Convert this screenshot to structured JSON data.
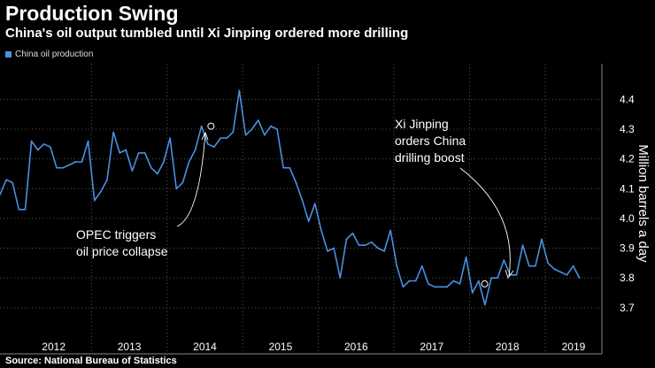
{
  "header": {
    "title": "Production Swing",
    "subtitle": "China's oil output tumbled until Xi Jinping ordered more drilling"
  },
  "source_text": "Source: National Bureau of Statistics",
  "colors": {
    "background": "#000000",
    "series": "#4a90e2",
    "grid": "#555555",
    "text": "#ffffff",
    "annotation": "#ffffff"
  },
  "chart_data": {
    "type": "line",
    "title": "Production Swing",
    "subtitle": "China's oil output tumbled until Xi Jinping ordered more drilling",
    "xlabel": "",
    "ylabel": "Million barrels a day",
    "ylim": [
      3.64,
      4.52
    ],
    "yticks": [
      "3.7",
      "3.8",
      "3.9",
      "4.0",
      "4.1",
      "4.2",
      "4.3",
      "4.4"
    ],
    "xlim": [
      2011.79,
      2019.75
    ],
    "year_labels": [
      "2012",
      "2013",
      "2014",
      "2015",
      "2016",
      "2017",
      "2018",
      "2019"
    ],
    "legend": [
      "China oil production"
    ],
    "series": [
      {
        "name": "China oil production",
        "start": 2011.79,
        "step": 0.0833,
        "values": [
          4.08,
          4.13,
          4.12,
          4.03,
          4.03,
          4.26,
          4.23,
          4.25,
          4.24,
          4.17,
          4.17,
          4.18,
          4.19,
          4.19,
          4.26,
          4.06,
          4.09,
          4.13,
          4.29,
          4.22,
          4.23,
          4.16,
          4.22,
          4.22,
          4.17,
          4.15,
          4.19,
          4.27,
          4.1,
          4.12,
          4.19,
          4.23,
          4.31,
          4.25,
          4.24,
          4.27,
          4.27,
          4.29,
          4.43,
          4.28,
          4.3,
          4.33,
          4.28,
          4.31,
          4.3,
          4.17,
          4.17,
          4.12,
          4.06,
          3.99,
          4.05,
          3.96,
          3.89,
          3.9,
          3.8,
          3.93,
          3.95,
          3.91,
          3.91,
          3.92,
          3.9,
          3.89,
          3.96,
          3.84,
          3.77,
          3.79,
          3.79,
          3.84,
          3.78,
          3.77,
          3.77,
          3.77,
          3.79,
          3.78,
          3.87,
          3.75,
          3.79,
          3.71,
          3.8,
          3.8,
          3.86,
          3.81,
          3.81,
          3.91,
          3.84,
          3.84,
          3.93,
          3.85,
          3.83,
          3.82,
          3.81,
          3.84,
          3.8
        ]
      }
    ],
    "annotations": [
      {
        "lines": [
          "OPEC triggers",
          "oil price collapse"
        ],
        "target_x": 2014.58,
        "target_y": 4.31
      },
      {
        "lines": [
          "Xi Jinping",
          "orders China",
          "drilling boost"
        ],
        "target_x": 2018.2,
        "target_y": 3.78
      }
    ]
  }
}
